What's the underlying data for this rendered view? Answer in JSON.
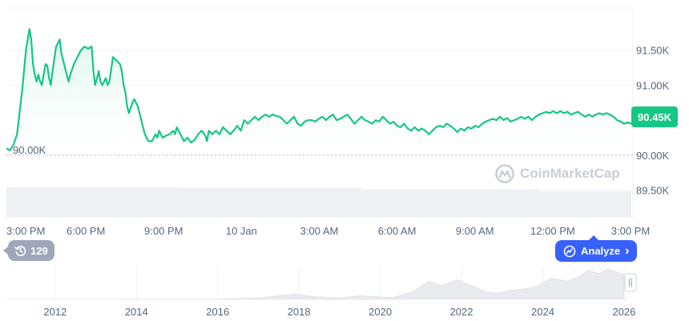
{
  "watermark": {
    "brand": "CoinMarketCap",
    "icon": "coinmarketcap-logo-icon"
  },
  "current_price_label": "90.45K",
  "history_pill": {
    "icon": "history-clock-icon",
    "count": "129"
  },
  "analyze_button": {
    "icon": "analyze-sparkle-icon",
    "label": "Analyze",
    "chevron": "›"
  },
  "colors": {
    "line": "#16c784",
    "area_top": "#d9f5ea",
    "grid": "#eff2f5",
    "dotted": "#cfd6e4",
    "volume": "#eef0f3",
    "overview": "#e9ebee",
    "axis_text": "#58667e",
    "badge": "#16c784",
    "analyze": "#3861fb"
  },
  "chart_data": {
    "type": "area",
    "title": "",
    "xlabel": "",
    "ylabel": "",
    "ylim": [
      89.12,
      92.1
    ],
    "y_ticks": [
      {
        "value": 89.5,
        "label": "89.50K"
      },
      {
        "value": 90.0,
        "label": "90.00K"
      },
      {
        "value": 91.0,
        "label": "91.00K"
      },
      {
        "value": 91.5,
        "label": "91.50K"
      }
    ],
    "baseline": {
      "value": 90.0,
      "label": "90.00K"
    },
    "current": {
      "value": 90.45,
      "label": "90.45K"
    },
    "x_ticks": [
      "3:00 PM",
      "6:00 PM",
      "9:00 PM",
      "10 Jan",
      "3:00 AM",
      "6:00 AM",
      "9:00 AM",
      "12:00 PM",
      "3:00 PM"
    ],
    "series": [
      {
        "points": [
          [
            0,
            90.1
          ],
          [
            0.01,
            90.07
          ],
          [
            0.02,
            90.15
          ],
          [
            0.03,
            90.3
          ],
          [
            0.045,
            90.95
          ],
          [
            0.055,
            91.5
          ],
          [
            0.065,
            91.8
          ],
          [
            0.07,
            91.65
          ],
          [
            0.075,
            91.3
          ],
          [
            0.08,
            91.15
          ],
          [
            0.085,
            91.05
          ],
          [
            0.09,
            91.15
          ],
          [
            0.095,
            91.05
          ],
          [
            0.1,
            91.0
          ],
          [
            0.105,
            91.15
          ],
          [
            0.11,
            91.3
          ],
          [
            0.115,
            91.28
          ],
          [
            0.12,
            91.1
          ],
          [
            0.125,
            91.0
          ],
          [
            0.13,
            91.2
          ],
          [
            0.14,
            91.55
          ],
          [
            0.15,
            91.65
          ],
          [
            0.155,
            91.45
          ],
          [
            0.165,
            91.25
          ],
          [
            0.175,
            91.05
          ],
          [
            0.18,
            91.15
          ],
          [
            0.19,
            91.3
          ],
          [
            0.2,
            91.4
          ],
          [
            0.21,
            91.5
          ],
          [
            0.22,
            91.55
          ],
          [
            0.23,
            91.52
          ],
          [
            0.24,
            91.55
          ],
          [
            0.245,
            91.2
          ],
          [
            0.25,
            91.0
          ],
          [
            0.255,
            91.1
          ],
          [
            0.26,
            91.2
          ],
          [
            0.265,
            91.05
          ],
          [
            0.27,
            91.0
          ],
          [
            0.28,
            91.1
          ],
          [
            0.285,
            91.0
          ],
          [
            0.29,
            91.05
          ],
          [
            0.3,
            91.4
          ],
          [
            0.31,
            91.35
          ],
          [
            0.32,
            91.3
          ],
          [
            0.325,
            91.2
          ],
          [
            0.33,
            91.0
          ],
          [
            0.335,
            90.9
          ],
          [
            0.34,
            90.7
          ],
          [
            0.345,
            90.6
          ],
          [
            0.355,
            90.75
          ],
          [
            0.36,
            90.8
          ],
          [
            0.37,
            90.7
          ],
          [
            0.38,
            90.5
          ],
          [
            0.39,
            90.3
          ],
          [
            0.4,
            90.2
          ],
          [
            0.41,
            90.2
          ],
          [
            0.42,
            90.3
          ],
          [
            0.425,
            90.25
          ],
          [
            0.43,
            90.35
          ],
          [
            0.44,
            90.25
          ],
          [
            0.45,
            90.28
          ],
          [
            0.46,
            90.3
          ],
          [
            0.47,
            90.35
          ],
          [
            0.475,
            90.3
          ],
          [
            0.48,
            90.4
          ],
          [
            0.49,
            90.3
          ],
          [
            0.5,
            90.2
          ],
          [
            0.51,
            90.25
          ],
          [
            0.52,
            90.18
          ],
          [
            0.53,
            90.22
          ],
          [
            0.54,
            90.3
          ],
          [
            0.55,
            90.35
          ],
          [
            0.56,
            90.28
          ],
          [
            0.565,
            90.2
          ],
          [
            0.57,
            90.35
          ],
          [
            0.58,
            90.3
          ],
          [
            0.59,
            90.35
          ],
          [
            0.6,
            90.3
          ],
          [
            0.61,
            90.4
          ],
          [
            0.62,
            90.35
          ],
          [
            0.63,
            90.3
          ],
          [
            0.64,
            90.35
          ],
          [
            0.65,
            90.42
          ],
          [
            0.66,
            90.35
          ],
          [
            0.67,
            90.5
          ],
          [
            0.68,
            90.45
          ],
          [
            0.69,
            90.5
          ],
          [
            0.7,
            90.55
          ],
          [
            0.71,
            90.5
          ],
          [
            0.72,
            90.55
          ],
          [
            0.73,
            90.58
          ],
          [
            0.74,
            90.55
          ],
          [
            0.75,
            90.58
          ],
          [
            0.76,
            90.56
          ],
          [
            0.77,
            90.55
          ],
          [
            0.78,
            90.5
          ],
          [
            0.79,
            90.45
          ],
          [
            0.8,
            90.5
          ],
          [
            0.81,
            90.55
          ],
          [
            0.82,
            90.45
          ],
          [
            0.83,
            90.42
          ],
          [
            0.84,
            90.48
          ],
          [
            0.85,
            90.5
          ],
          [
            0.86,
            90.5
          ],
          [
            0.87,
            90.48
          ],
          [
            0.88,
            90.52
          ],
          [
            0.89,
            90.55
          ],
          [
            0.9,
            90.5
          ],
          [
            0.91,
            90.55
          ],
          [
            0.92,
            90.58
          ],
          [
            0.93,
            90.5
          ],
          [
            0.94,
            90.52
          ],
          [
            0.95,
            90.55
          ],
          [
            0.96,
            90.58
          ],
          [
            0.97,
            90.52
          ],
          [
            0.98,
            90.45
          ],
          [
            0.99,
            90.5
          ],
          [
            1.0,
            90.55
          ],
          [
            1.01,
            90.5
          ],
          [
            1.02,
            90.48
          ],
          [
            1.03,
            90.45
          ],
          [
            1.04,
            90.5
          ],
          [
            1.05,
            90.48
          ],
          [
            1.06,
            90.55
          ],
          [
            1.07,
            90.5
          ],
          [
            1.08,
            90.45
          ],
          [
            1.09,
            90.48
          ],
          [
            1.1,
            90.42
          ],
          [
            1.11,
            90.4
          ],
          [
            1.12,
            90.45
          ],
          [
            1.13,
            90.38
          ],
          [
            1.14,
            90.35
          ],
          [
            1.15,
            90.4
          ],
          [
            1.16,
            90.35
          ],
          [
            1.17,
            90.38
          ],
          [
            1.18,
            90.35
          ],
          [
            1.19,
            90.3
          ],
          [
            1.2,
            90.35
          ],
          [
            1.21,
            90.4
          ],
          [
            1.22,
            90.42
          ],
          [
            1.23,
            90.4
          ],
          [
            1.24,
            90.45
          ],
          [
            1.25,
            90.42
          ],
          [
            1.26,
            90.38
          ],
          [
            1.27,
            90.33
          ],
          [
            1.28,
            90.38
          ],
          [
            1.29,
            90.35
          ],
          [
            1.3,
            90.4
          ],
          [
            1.31,
            90.38
          ],
          [
            1.32,
            90.42
          ],
          [
            1.33,
            90.4
          ],
          [
            1.34,
            90.45
          ],
          [
            1.35,
            90.48
          ],
          [
            1.36,
            90.5
          ],
          [
            1.37,
            90.52
          ],
          [
            1.38,
            90.5
          ],
          [
            1.39,
            90.55
          ],
          [
            1.4,
            90.5
          ],
          [
            1.41,
            90.53
          ],
          [
            1.42,
            90.48
          ],
          [
            1.43,
            90.5
          ],
          [
            1.44,
            90.52
          ],
          [
            1.45,
            90.55
          ],
          [
            1.46,
            90.52
          ],
          [
            1.47,
            90.55
          ],
          [
            1.48,
            90.5
          ],
          [
            1.49,
            90.55
          ],
          [
            1.5,
            90.58
          ],
          [
            1.51,
            90.6
          ],
          [
            1.52,
            90.62
          ],
          [
            1.53,
            90.6
          ],
          [
            1.54,
            90.63
          ],
          [
            1.55,
            90.6
          ],
          [
            1.56,
            90.63
          ],
          [
            1.57,
            90.6
          ],
          [
            1.58,
            90.62
          ],
          [
            1.59,
            90.58
          ],
          [
            1.6,
            90.6
          ],
          [
            1.61,
            90.62
          ],
          [
            1.62,
            90.58
          ],
          [
            1.63,
            90.55
          ],
          [
            1.64,
            90.58
          ],
          [
            1.65,
            90.55
          ],
          [
            1.66,
            90.58
          ],
          [
            1.67,
            90.6
          ],
          [
            1.68,
            90.58
          ],
          [
            1.69,
            90.6
          ],
          [
            1.7,
            90.58
          ],
          [
            1.71,
            90.55
          ],
          [
            1.72,
            90.5
          ],
          [
            1.73,
            90.48
          ],
          [
            1.74,
            90.45
          ],
          [
            1.75,
            90.47
          ],
          [
            1.76,
            90.45
          ]
        ]
      }
    ],
    "volume": [
      {
        "x_start": 0.0,
        "x_end": 0.5,
        "level": 1.0
      },
      {
        "x_start": 0.5,
        "x_end": 1.0,
        "level": 0.98
      },
      {
        "x_start": 1.0,
        "x_end": 1.5,
        "level": 0.93
      },
      {
        "x_start": 1.5,
        "x_end": 1.76,
        "level": 0.86
      }
    ],
    "overview": {
      "x_ticks": [
        "2012",
        "2014",
        "2016",
        "2018",
        "2020",
        "2022",
        "2024",
        "2026"
      ],
      "range": [
        2010.8,
        2026.1
      ],
      "points": [
        [
          2010.8,
          0
        ],
        [
          2013.0,
          0
        ],
        [
          2014.0,
          0.005
        ],
        [
          2015.0,
          0.004
        ],
        [
          2016.0,
          0.008
        ],
        [
          2017.0,
          0.05
        ],
        [
          2017.9,
          0.18
        ],
        [
          2018.3,
          0.1
        ],
        [
          2019.0,
          0.05
        ],
        [
          2019.5,
          0.12
        ],
        [
          2020.0,
          0.08
        ],
        [
          2020.3,
          0.06
        ],
        [
          2020.8,
          0.25
        ],
        [
          2021.2,
          0.6
        ],
        [
          2021.5,
          0.45
        ],
        [
          2021.9,
          0.65
        ],
        [
          2022.3,
          0.42
        ],
        [
          2022.6,
          0.25
        ],
        [
          2022.9,
          0.2
        ],
        [
          2023.2,
          0.3
        ],
        [
          2023.6,
          0.35
        ],
        [
          2023.9,
          0.45
        ],
        [
          2024.2,
          0.7
        ],
        [
          2024.6,
          0.6
        ],
        [
          2024.9,
          0.75
        ],
        [
          2025.1,
          0.95
        ],
        [
          2025.4,
          0.85
        ],
        [
          2025.6,
          1.0
        ],
        [
          2025.8,
          0.9
        ],
        [
          2026.0,
          0.82
        ]
      ]
    }
  }
}
